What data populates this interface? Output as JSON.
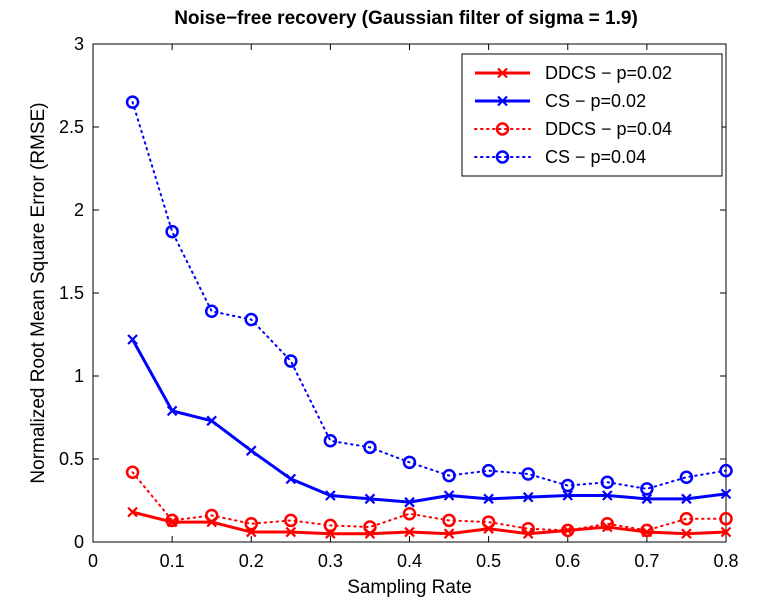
{
  "chart_data": {
    "type": "line",
    "title": "Noise−free recovery (Gaussian filter of sigma = 1.9)",
    "xlabel": "Sampling Rate",
    "ylabel": "Normalized Root Mean Square Error (RMSE)",
    "xlim": [
      0,
      0.8
    ],
    "ylim": [
      0,
      3
    ],
    "xticks": [
      0,
      0.1,
      0.2,
      0.3,
      0.4,
      0.5,
      0.6,
      0.7,
      0.8
    ],
    "xtick_labels": [
      "0",
      "0.1",
      "0.2",
      "0.3",
      "0.4",
      "0.5",
      "0.6",
      "0.7",
      "0.8"
    ],
    "yticks": [
      0,
      0.5,
      1,
      1.5,
      2,
      2.5,
      3
    ],
    "ytick_labels": [
      "0",
      "0.5",
      "1",
      "1.5",
      "2",
      "2.5",
      "3"
    ],
    "grid": false,
    "legend_position": "top-right",
    "x": [
      0.05,
      0.1,
      0.15,
      0.2,
      0.25,
      0.3,
      0.35,
      0.4,
      0.45,
      0.5,
      0.55,
      0.6,
      0.65,
      0.7,
      0.75,
      0.8
    ],
    "series": [
      {
        "name": "DDCS − p=0.02",
        "color": "#ff0000",
        "line_style": "solid",
        "marker": "x",
        "values": [
          0.18,
          0.12,
          0.12,
          0.06,
          0.06,
          0.05,
          0.05,
          0.06,
          0.05,
          0.08,
          0.05,
          0.07,
          0.09,
          0.06,
          0.05,
          0.06
        ]
      },
      {
        "name": "CS − p=0.02",
        "color": "#0000ff",
        "line_style": "solid",
        "marker": "x",
        "values": [
          1.22,
          0.79,
          0.73,
          0.55,
          0.38,
          0.28,
          0.26,
          0.24,
          0.28,
          0.26,
          0.27,
          0.28,
          0.28,
          0.26,
          0.26,
          0.29
        ]
      },
      {
        "name": "DDCS − p=0.04",
        "color": "#ff0000",
        "line_style": "dotted",
        "marker": "o",
        "values": [
          0.42,
          0.13,
          0.16,
          0.11,
          0.13,
          0.1,
          0.09,
          0.17,
          0.13,
          0.12,
          0.08,
          0.07,
          0.11,
          0.07,
          0.14,
          0.14
        ]
      },
      {
        "name": "CS − p=0.04",
        "color": "#0000ff",
        "line_style": "dotted",
        "marker": "o",
        "values": [
          2.65,
          1.87,
          1.39,
          1.34,
          1.09,
          0.61,
          0.57,
          0.48,
          0.4,
          0.43,
          0.41,
          0.34,
          0.36,
          0.32,
          0.39,
          0.43
        ]
      }
    ]
  }
}
